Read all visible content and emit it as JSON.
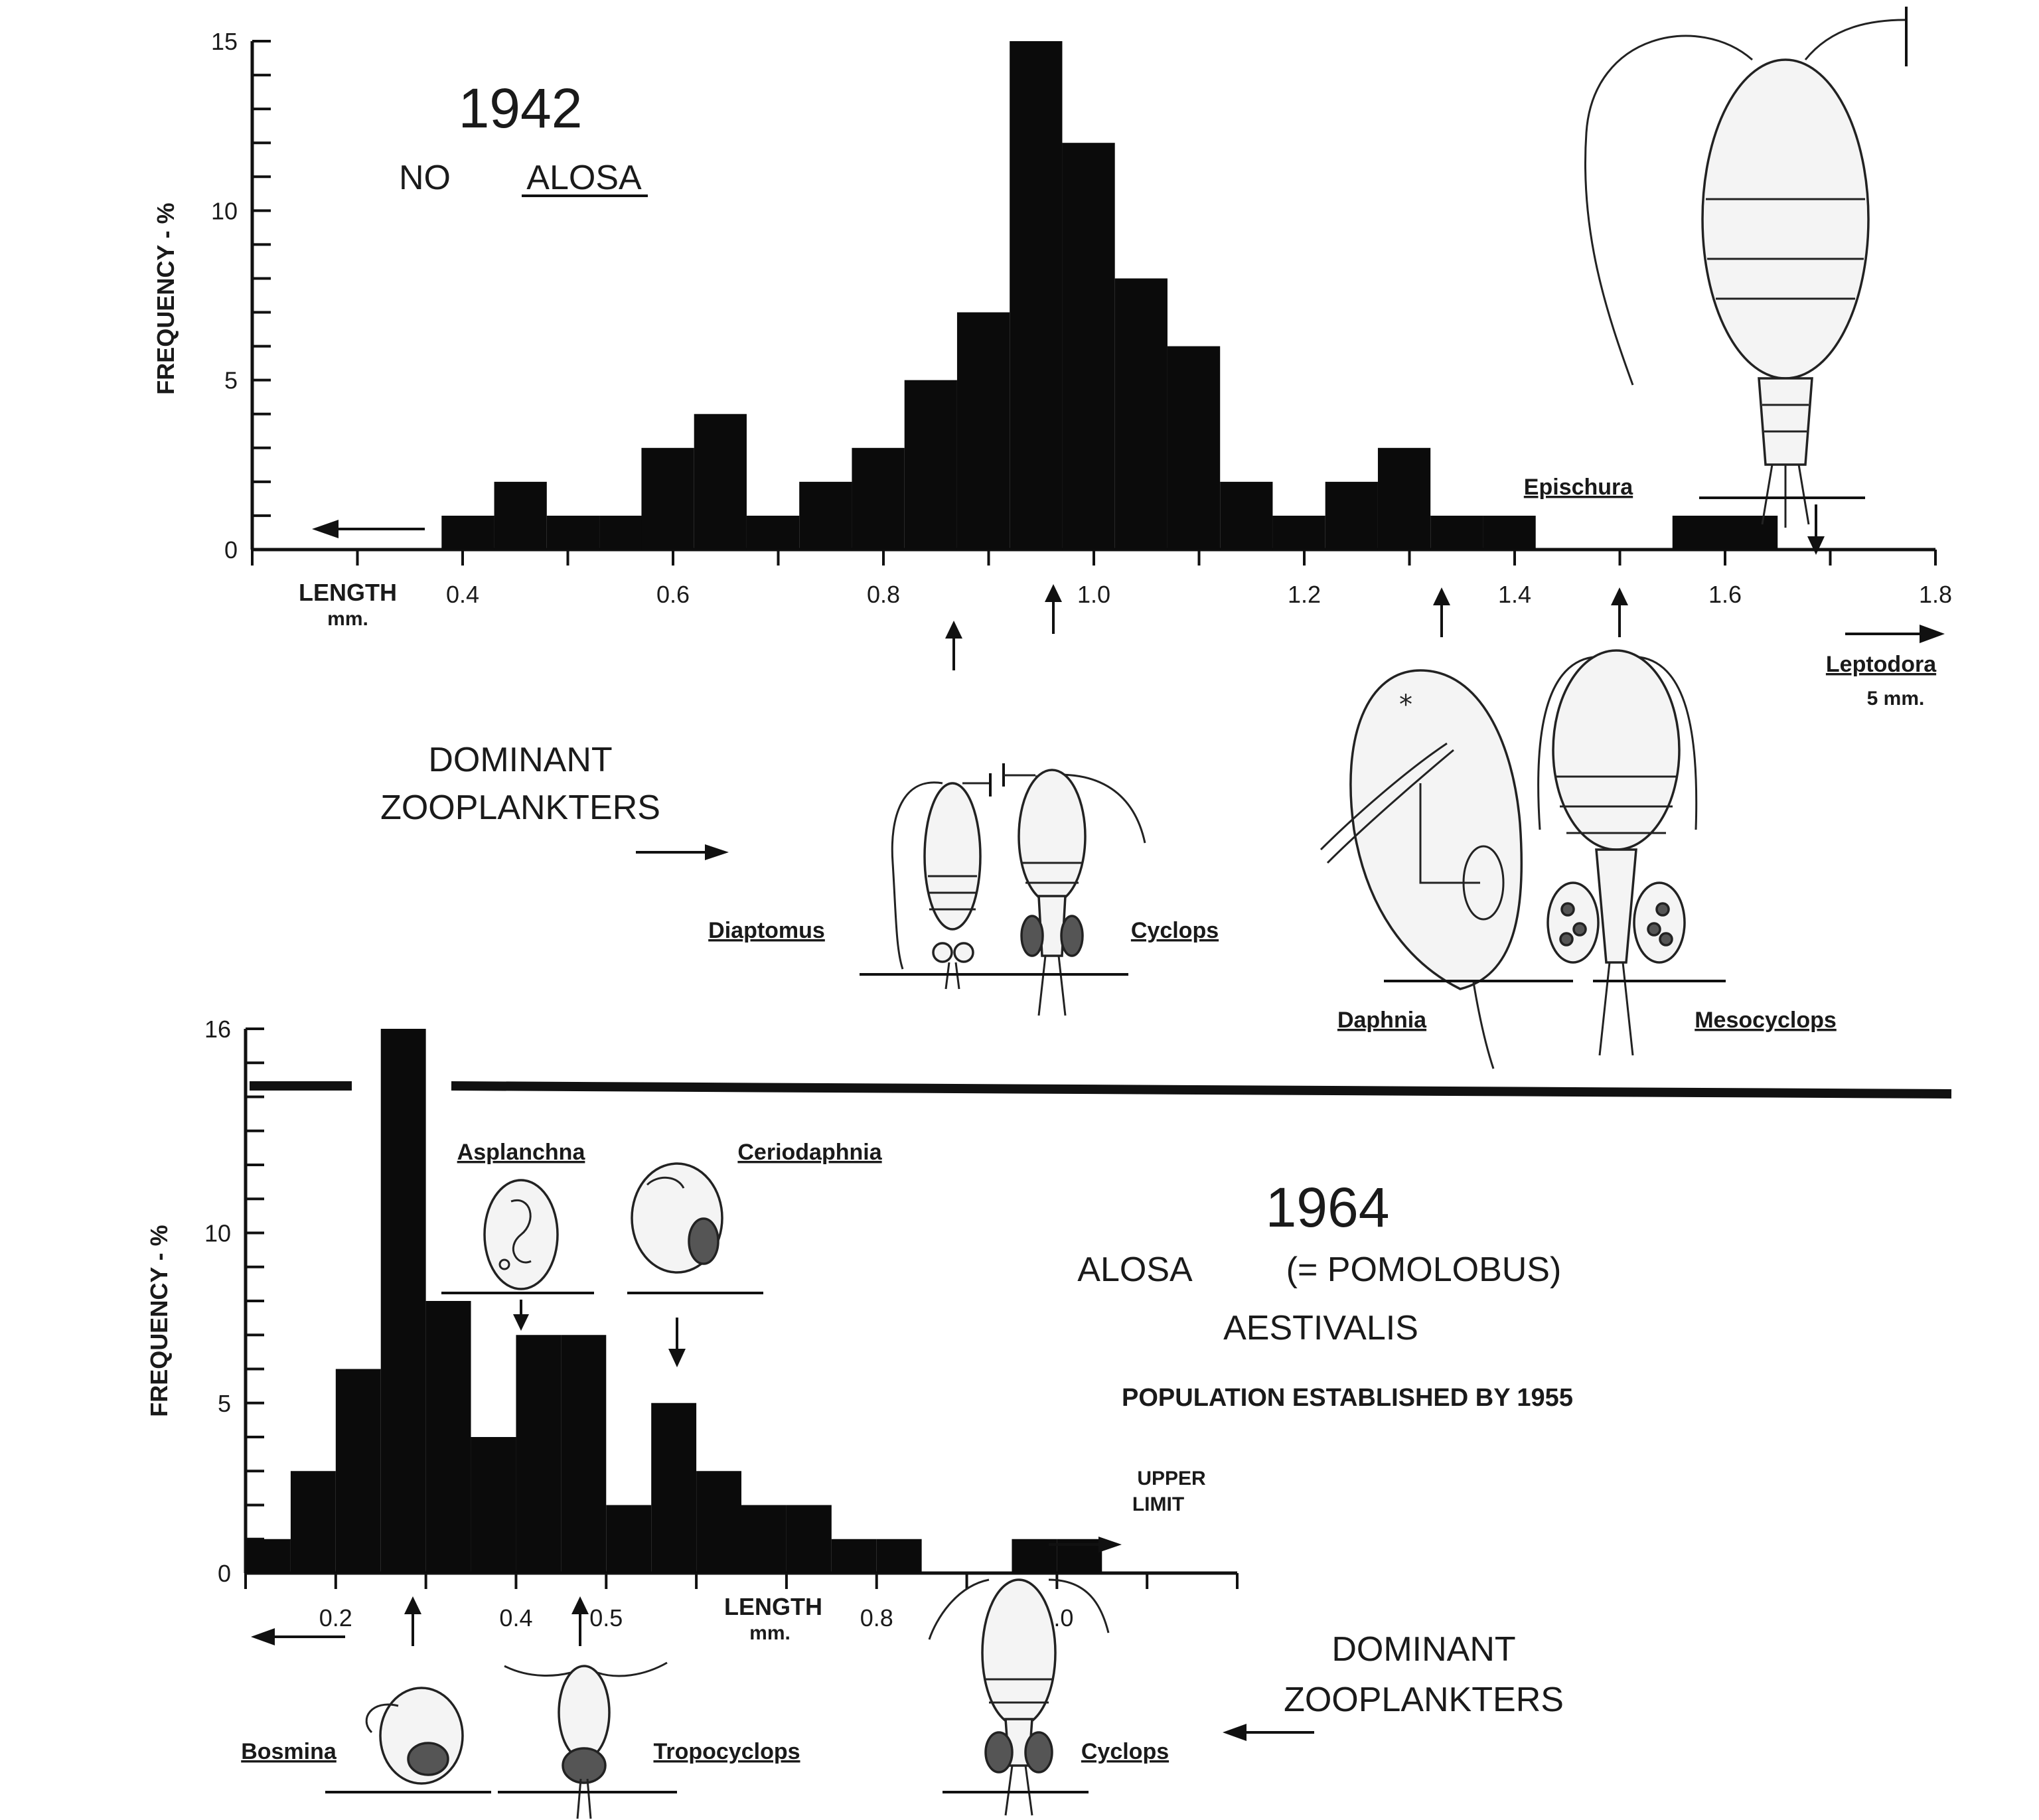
{
  "chart_data": [
    {
      "type": "bar",
      "title": "1942",
      "subtitle": "NO ALOSA",
      "ylabel": "FREQUENCY - %",
      "xlabel": "LENGTH mm.",
      "ylim": [
        0,
        15
      ],
      "xlim": [
        0.2,
        1.8
      ],
      "y_ticks": [
        "0",
        "5",
        "10",
        "15"
      ],
      "x_ticks": [
        "0.4",
        "0.6",
        "0.8",
        "1.0",
        "1.2",
        "1.4",
        "1.6",
        "1.8"
      ],
      "bin_width": 0.05,
      "bins": [
        {
          "x": 0.38,
          "value": 1
        },
        {
          "x": 0.43,
          "value": 2
        },
        {
          "x": 0.48,
          "value": 1
        },
        {
          "x": 0.53,
          "value": 1
        },
        {
          "x": 0.57,
          "value": 3
        },
        {
          "x": 0.62,
          "value": 4
        },
        {
          "x": 0.67,
          "value": 1
        },
        {
          "x": 0.72,
          "value": 2
        },
        {
          "x": 0.77,
          "value": 3
        },
        {
          "x": 0.82,
          "value": 5
        },
        {
          "x": 0.87,
          "value": 7
        },
        {
          "x": 0.92,
          "value": 15
        },
        {
          "x": 0.97,
          "value": 12
        },
        {
          "x": 1.02,
          "value": 8
        },
        {
          "x": 1.07,
          "value": 6
        },
        {
          "x": 1.12,
          "value": 2
        },
        {
          "x": 1.17,
          "value": 1
        },
        {
          "x": 1.22,
          "value": 2
        },
        {
          "x": 1.27,
          "value": 3
        },
        {
          "x": 1.32,
          "value": 1
        },
        {
          "x": 1.37,
          "value": 1
        },
        {
          "x": 1.55,
          "value": 1
        },
        {
          "x": 1.6,
          "value": 1
        }
      ],
      "annotations": [
        "Epischura",
        "Leptodora 5 mm."
      ],
      "dominant_zooplankters_label": "DOMINANT ZOOPLANKTERS",
      "species": [
        "Diaptomus",
        "Cyclops",
        "Daphnia",
        "Mesocyclops"
      ]
    },
    {
      "type": "bar",
      "title": "1964",
      "subtitle_lines": [
        "ALOSA (= POMOLOBUS)",
        "AESTIVALIS",
        "POPULATION ESTABLISHED BY 1955"
      ],
      "ylabel": "FREQUENCY - %",
      "xlabel": "LENGTH mm.",
      "ylim": [
        0,
        16
      ],
      "xlim": [
        0.1,
        1.2
      ],
      "y_ticks": [
        "0",
        "5",
        "10",
        "16"
      ],
      "x_ticks": [
        "0.2",
        "0.4",
        "0.5",
        "0.8",
        "1.0"
      ],
      "bin_width": 0.05,
      "bins": [
        {
          "x": 0.1,
          "value": 1
        },
        {
          "x": 0.15,
          "value": 3
        },
        {
          "x": 0.2,
          "value": 6
        },
        {
          "x": 0.25,
          "value": 16
        },
        {
          "x": 0.3,
          "value": 8
        },
        {
          "x": 0.35,
          "value": 4
        },
        {
          "x": 0.4,
          "value": 7
        },
        {
          "x": 0.45,
          "value": 7
        },
        {
          "x": 0.5,
          "value": 2
        },
        {
          "x": 0.55,
          "value": 5
        },
        {
          "x": 0.6,
          "value": 3
        },
        {
          "x": 0.65,
          "value": 2
        },
        {
          "x": 0.7,
          "value": 2
        },
        {
          "x": 0.75,
          "value": 1
        },
        {
          "x": 0.8,
          "value": 1
        },
        {
          "x": 0.95,
          "value": 1
        },
        {
          "x": 1.0,
          "value": 1
        }
      ],
      "annotations": [
        "UPPER LIMIT",
        "Asplanchna",
        "Ceriodaphnia"
      ],
      "dominant_zooplankters_label": "DOMINANT ZOOPLANKTERS",
      "species": [
        "Bosmina",
        "Tropocyclops",
        "Cyclops"
      ]
    }
  ],
  "text": {
    "top_year": "1942",
    "top_no": "NO",
    "top_alosa": "ALOSA",
    "ylabel": "FREQUENCY - %",
    "length": "LENGTH",
    "mm": "mm.",
    "dominant": "DOMINANT",
    "zooplankters": "ZOOPLANKTERS",
    "epischura": "Epischura",
    "leptodora": "Leptodora",
    "leptodora_size": "5 mm.",
    "diaptomus": "Diaptomus",
    "cyclops": "Cyclops",
    "daphnia": "Daphnia",
    "mesocyclops": "Mesocyclops",
    "bottom_year": "1964",
    "bottom_alosa": "ALOSA",
    "bottom_pomolobus": "(= POMOLOBUS)",
    "bottom_aestivalis": "AESTIVALIS",
    "bottom_pop": "POPULATION ESTABLISHED BY 1955",
    "asplanchna": "Asplanchna",
    "ceriodaphnia": "Ceriodaphnia",
    "upper": "UPPER",
    "limit": "LIMIT",
    "bosmina": "Bosmina",
    "tropocyclops": "Tropocyclops",
    "cyclops2": "Cyclops"
  }
}
